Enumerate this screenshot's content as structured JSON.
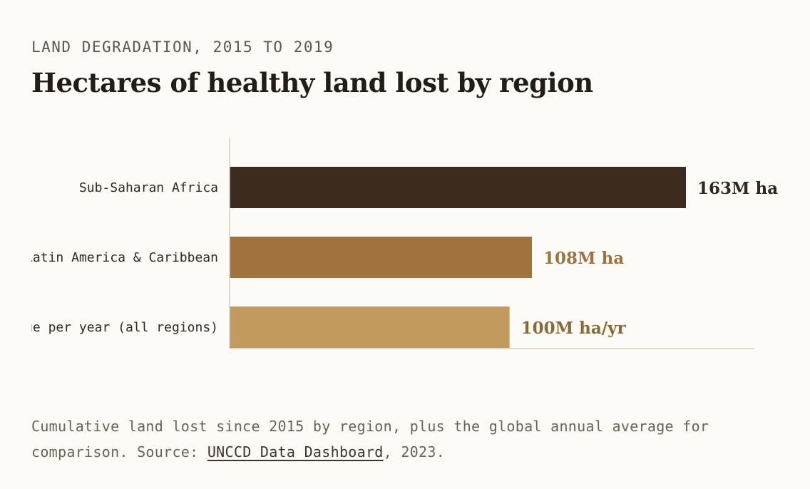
{
  "kicker": "LAND DEGRADATION, 2015 TO 2019",
  "title": "Hectares of healthy land lost by region",
  "chart_data": {
    "type": "bar",
    "orientation": "horizontal",
    "categories": [
      "Sub-Saharan Africa",
      "Latin America & Caribbean",
      "Global average per year (all regions)"
    ],
    "values": [
      163,
      108,
      100
    ],
    "value_labels": [
      "163M ha",
      "108M ha",
      "100M ha/yr"
    ],
    "colors": [
      "#3d2b1d",
      "#a1733c",
      "#c39a5e"
    ],
    "label_colors": [
      "#33271b",
      "#a1733c",
      "#8a6a34"
    ],
    "xlim": [
      0,
      163
    ],
    "grid": false
  },
  "caption": {
    "text_before": "Cumulative land lost since 2015 by region, plus the global annual average for comparison. Source: ",
    "link_text": "UNCCD Data Dashboard",
    "text_after": ", 2023."
  }
}
